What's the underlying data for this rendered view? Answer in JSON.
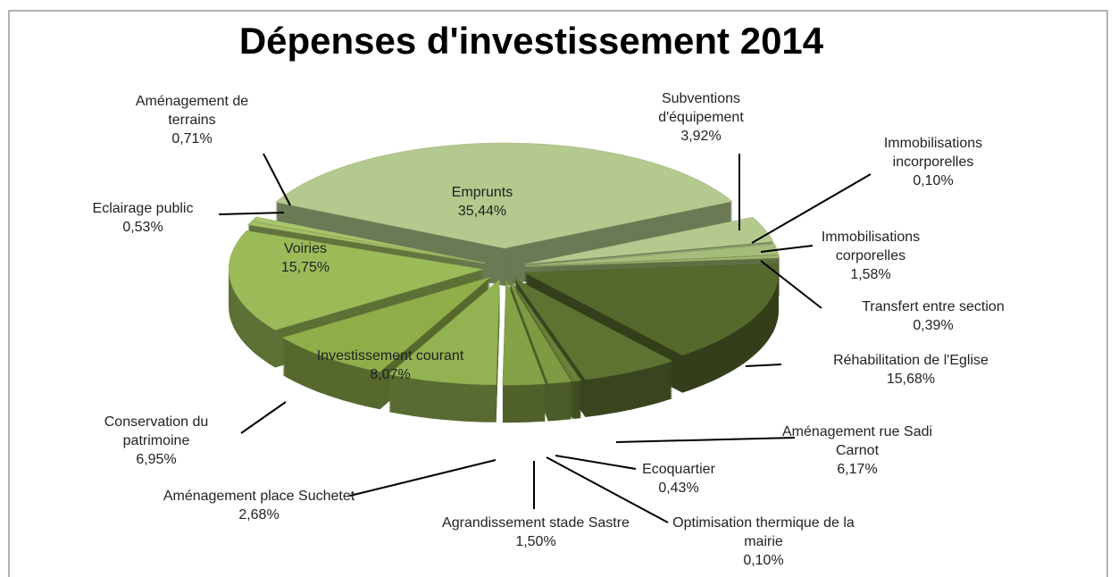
{
  "chart_data": {
    "type": "pie",
    "title": "Dépenses d'investissement 2014",
    "categories": [
      "Emprunts",
      "Subventions d'équipement",
      "Immobilisations incorporelles",
      "Immobilisations corporelles",
      "Transfert entre section",
      "Réhabilitation de l'Eglise",
      "Aménagement rue Sadi Carnot",
      "Ecoquartier",
      "Optimisation thermique de la mairie",
      "Agrandissement stade Sastre",
      "Aménagement place Suchetet",
      "Conservation du patrimoine",
      "Investissement courant",
      "Voiries",
      "Eclairage public",
      "Aménagement de terrains"
    ],
    "values": [
      35.44,
      3.92,
      0.1,
      1.58,
      0.39,
      15.68,
      6.17,
      0.43,
      0.1,
      1.5,
      2.68,
      6.95,
      8.07,
      15.75,
      0.53,
      0.71
    ],
    "value_labels": [
      "35,44%",
      "3,92%",
      "0,10%",
      "1,58%",
      "0,39%",
      "15,68%",
      "6,17%",
      "0,43%",
      "0,10%",
      "1,50%",
      "2,68%",
      "6,95%",
      "8,07%",
      "15,75%",
      "0,53%",
      "0,71%"
    ],
    "colors": [
      "#b3c98d",
      "#b3c98d",
      "#a9c07f",
      "#a5bd7a",
      "#9fb870",
      "#56692c",
      "#5d7332",
      "#6a8138",
      "#6f873c",
      "#7e9a43",
      "#86a247",
      "#93b251",
      "#8fae4a",
      "#9bbb59",
      "#a3c065",
      "#a8c46c"
    ]
  }
}
